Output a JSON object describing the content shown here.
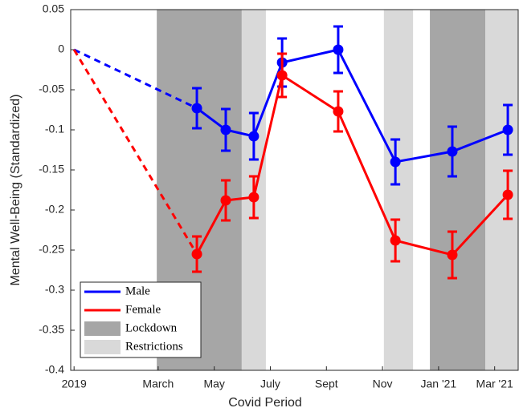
{
  "chart_data": {
    "type": "line",
    "x_label": "Covid Period",
    "y_label": "Mental Well-Being (Standardized)",
    "xlim": [
      -0.12,
      15.84
    ],
    "ylim": [
      -0.4,
      0.05
    ],
    "xticks": [
      {
        "value": 0,
        "label": "2019"
      },
      {
        "value": 3,
        "label": "March"
      },
      {
        "value": 5,
        "label": "May"
      },
      {
        "value": 7,
        "label": "July"
      },
      {
        "value": 9,
        "label": "Sept"
      },
      {
        "value": 11,
        "label": "Nov"
      },
      {
        "value": 13,
        "label": "Jan '21"
      },
      {
        "value": 15,
        "label": "Mar '21"
      }
    ],
    "yticks": [
      0.05,
      0,
      -0.05,
      -0.1,
      -0.15,
      -0.2,
      -0.25,
      -0.3,
      -0.35,
      -0.4
    ],
    "x": [
      0,
      4.38,
      5.41,
      6.41,
      7.42,
      9.42,
      11.46,
      13.49,
      15.47
    ],
    "series": [
      {
        "name": "Male",
        "color": "#0000ff",
        "values": [
          0,
          -0.073,
          -0.1,
          -0.108,
          -0.016,
          0,
          -0.14,
          -0.127,
          -0.1
        ],
        "errors": [
          null,
          0.025,
          0.026,
          0.029,
          0.03,
          0.029,
          0.028,
          0.031,
          0.031
        ]
      },
      {
        "name": "Female",
        "color": "#ff0000",
        "values": [
          0,
          -0.255,
          -0.188,
          -0.184,
          -0.032,
          -0.077,
          -0.238,
          -0.256,
          -0.181
        ],
        "errors": [
          null,
          0.022,
          0.025,
          0.026,
          0.027,
          0.025,
          0.026,
          0.029,
          0.03
        ]
      }
    ],
    "shading": [
      {
        "name": "Lockdown",
        "color": "#a6a6a6",
        "spans": [
          [
            2.95,
            5.98
          ],
          [
            12.69,
            14.67
          ]
        ]
      },
      {
        "name": "Restrictions",
        "color": "#d9d9d9",
        "spans": [
          [
            5.98,
            6.84
          ],
          [
            11.05,
            12.09
          ],
          [
            14.67,
            15.84
          ]
        ]
      }
    ],
    "legend": "lower left"
  }
}
